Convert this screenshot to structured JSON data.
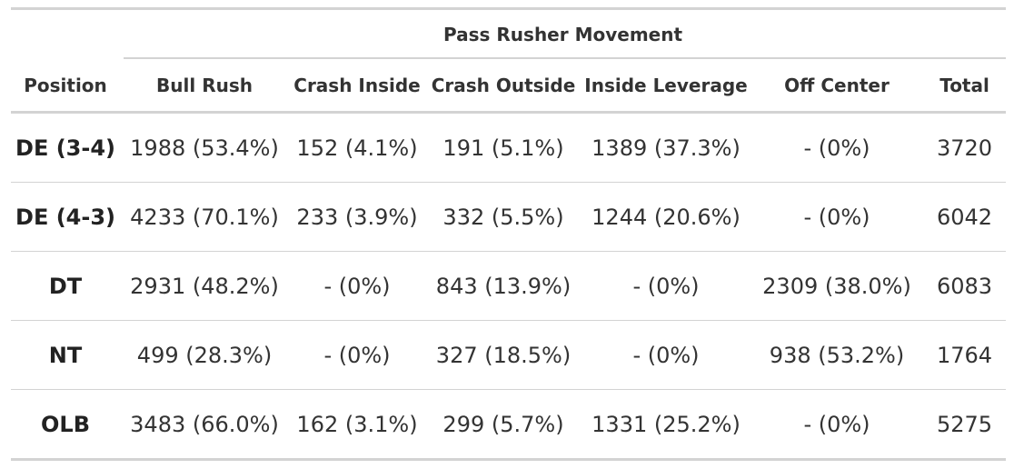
{
  "table": {
    "spanner_label": "Pass Rusher Movement",
    "columns": [
      "Position",
      "Bull Rush",
      "Crash Inside",
      "Crash Outside",
      "Inside Leverage",
      "Off Center",
      "Total"
    ],
    "rows": [
      [
        "DE (3-4)",
        "1988 (53.4%)",
        "152 (4.1%)",
        "191 (5.1%)",
        "1389 (37.3%)",
        "- (0%)",
        "3720"
      ],
      [
        "DE (4-3)",
        "4233 (70.1%)",
        "233 (3.9%)",
        "332 (5.5%)",
        "1244 (20.6%)",
        "- (0%)",
        "6042"
      ],
      [
        "DT",
        "2931 (48.2%)",
        "- (0%)",
        "843 (13.9%)",
        "- (0%)",
        "2309 (38.0%)",
        "6083"
      ],
      [
        "NT",
        "499 (28.3%)",
        "- (0%)",
        "327 (18.5%)",
        "- (0%)",
        "938 (53.2%)",
        "1764"
      ],
      [
        "OLB",
        "3483 (66.0%)",
        "162 (3.1%)",
        "299 (5.7%)",
        "1331 (25.2%)",
        "- (0%)",
        "5275"
      ]
    ]
  }
}
